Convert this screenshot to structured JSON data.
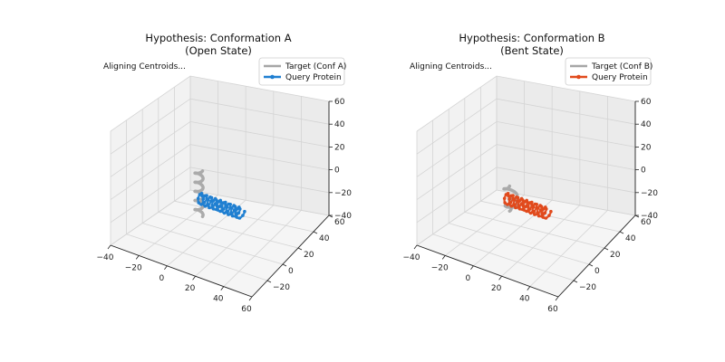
{
  "chart_data": [
    {
      "type": "line3d",
      "title": "Hypothesis: Conformation A",
      "subtitle": "(Open State)",
      "annotation": "Aligning Centroids...",
      "xlim": [
        -40,
        60
      ],
      "ylim": [
        -40,
        60
      ],
      "zlim": [
        -40,
        60
      ],
      "xticks": [
        "−40",
        "−20",
        "0",
        "20",
        "40",
        "60"
      ],
      "yticks": [
        "−20",
        "0",
        "20",
        "40",
        "60"
      ],
      "zticks": [
        "−40",
        "−20",
        "0",
        "20",
        "40",
        "60"
      ],
      "grid": true,
      "legend_position": "top-right",
      "series": [
        {
          "name": "Target (Conf A)",
          "color": "#a6a6a6",
          "marker": "none",
          "shape": "vertical-helix",
          "center": [
            0,
            0,
            5
          ],
          "radius": 2.5,
          "z_range": [
            -15,
            25
          ],
          "turns": 5
        },
        {
          "name": "Query Protein",
          "color": "#1f7fd1",
          "marker": "dot",
          "shape": "horizontal-helix",
          "center": [
            15,
            0,
            0
          ],
          "radius": 4,
          "x_range": [
            0,
            30
          ],
          "turns": 9
        }
      ]
    },
    {
      "type": "line3d",
      "title": "Hypothesis: Conformation B",
      "subtitle": "(Bent State)",
      "annotation": "Aligning Centroids...",
      "xlim": [
        -40,
        60
      ],
      "ylim": [
        -40,
        60
      ],
      "zlim": [
        -40,
        60
      ],
      "xticks": [
        "−40",
        "−20",
        "0",
        "20",
        "40",
        "60"
      ],
      "yticks": [
        "−20",
        "0",
        "20",
        "40",
        "60"
      ],
      "zticks": [
        "−40",
        "−20",
        "0",
        "20",
        "40",
        "60"
      ],
      "grid": true,
      "legend_position": "top-right",
      "series": [
        {
          "name": "Target (Conf B)",
          "color": "#a6a6a6",
          "marker": "none",
          "shape": "bent-helix",
          "center": [
            0,
            0,
            3
          ],
          "radius": 3,
          "z_range": [
            -10,
            12
          ],
          "turns": 3
        },
        {
          "name": "Query Protein",
          "color": "#e14a1c",
          "marker": "dot",
          "shape": "horizontal-helix",
          "center": [
            15,
            0,
            0
          ],
          "radius": 4,
          "x_range": [
            0,
            30
          ],
          "turns": 9
        }
      ]
    }
  ]
}
